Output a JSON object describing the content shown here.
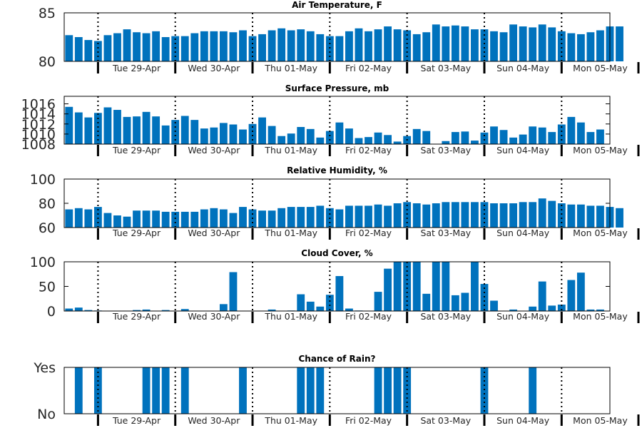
{
  "chart_data": [
    {
      "type": "bar",
      "title": "Air Temperature, F",
      "ylim": [
        80,
        85
      ],
      "yticks": [
        80,
        85
      ],
      "ytick_labels": [
        "80",
        "85"
      ],
      "x_tick_labels": [
        "Tue 29-Apr",
        "Wed 30-Apr",
        "Thu 01-May",
        "Fri 02-May",
        "Sat 03-May",
        "Sun 04-May",
        "Mon 05-May"
      ],
      "day_boundaries": true,
      "bar_color": "#0072BD",
      "values": [
        82.7,
        82.5,
        82.2,
        82.1,
        82.7,
        82.9,
        83.3,
        83.0,
        82.9,
        83.1,
        82.5,
        82.6,
        82.6,
        82.9,
        83.1,
        83.1,
        83.1,
        83.0,
        83.2,
        82.6,
        82.8,
        83.2,
        83.4,
        83.2,
        83.3,
        83.1,
        82.8,
        82.6,
        82.6,
        83.1,
        83.4,
        83.1,
        83.3,
        83.6,
        83.3,
        83.2,
        82.8,
        83.0,
        83.8,
        83.6,
        83.7,
        83.6,
        83.3,
        83.3,
        83.1,
        83.0,
        83.8,
        83.6,
        83.5,
        83.8,
        83.5,
        83.1,
        82.9,
        82.8,
        83.0,
        83.2,
        83.6,
        83.6
      ]
    },
    {
      "type": "bar",
      "title": "Surface Pressure, mb",
      "ylim": [
        1008,
        1017.5
      ],
      "yticks": [
        1008,
        1010,
        1012,
        1014,
        1016
      ],
      "ytick_labels": [
        "1008",
        "1010",
        "1012",
        "1014",
        "1016"
      ],
      "x_tick_labels": [
        "Tue 29-Apr",
        "Wed 30-Apr",
        "Thu 01-May",
        "Fri 02-May",
        "Sat 03-May",
        "Sun 04-May",
        "Mon 05-May"
      ],
      "day_boundaries": true,
      "bar_color": "#0072BD",
      "values": [
        1015.4,
        1014.3,
        1013.3,
        1014.2,
        1015.3,
        1014.8,
        1013.4,
        1013.5,
        1014.4,
        1013.5,
        1011.7,
        1012.8,
        1013.6,
        1012.8,
        1011.1,
        1011.3,
        1012.2,
        1011.9,
        1010.9,
        1012.0,
        1013.3,
        1011.6,
        1009.6,
        1010.1,
        1011.4,
        1011.0,
        1009.3,
        1010.6,
        1012.3,
        1011.1,
        1009.2,
        1009.4,
        1010.3,
        1009.8,
        1008.5,
        1009.6,
        1011.0,
        1010.6,
        1007.6,
        1008.6,
        1010.4,
        1010.5,
        1008.7,
        1010.3,
        1011.5,
        1010.8,
        1009.3,
        1009.9,
        1011.5,
        1011.3,
        1010.4,
        1011.9,
        1013.4,
        1012.3,
        1010.4,
        1010.9
      ]
    },
    {
      "type": "bar",
      "title": "Relative Humidity, %",
      "ylim": [
        60,
        100
      ],
      "yticks": [
        60,
        80,
        100
      ],
      "ytick_labels": [
        "60",
        "80",
        "100"
      ],
      "x_tick_labels": [
        "Tue 29-Apr",
        "Wed 30-Apr",
        "Thu 01-May",
        "Fri 02-May",
        "Sat 03-May",
        "Sun 04-May",
        "Mon 05-May"
      ],
      "day_boundaries": true,
      "bar_color": "#0072BD",
      "values": [
        75,
        76,
        75,
        77,
        72,
        70,
        69,
        74,
        74,
        74,
        73,
        73,
        73,
        73,
        75,
        76,
        75,
        72,
        77,
        75,
        74,
        74,
        76,
        77,
        77,
        77,
        78,
        76,
        75,
        78,
        78,
        78,
        79,
        78,
        80,
        81,
        80,
        79,
        80,
        81,
        81,
        81,
        81,
        81,
        80,
        80,
        80,
        81,
        81,
        84,
        82,
        80,
        79,
        79,
        78,
        78,
        77,
        76
      ]
    },
    {
      "type": "bar",
      "title": "Cloud Cover, %",
      "ylim": [
        0,
        100
      ],
      "yticks": [
        0,
        50,
        100
      ],
      "ytick_labels": [
        "0",
        "50",
        "100"
      ],
      "x_tick_labels": [
        "Tue 29-Apr",
        "Wed 30-Apr",
        "Thu 01-May",
        "Fri 02-May",
        "Sat 03-May",
        "Sun 04-May",
        "Mon 05-May"
      ],
      "day_boundaries": true,
      "bar_color": "#0072BD",
      "values": [
        5,
        7,
        2,
        1,
        0,
        0,
        0,
        2,
        3,
        0,
        2,
        0,
        4,
        0,
        0,
        0,
        14,
        79,
        0,
        0,
        0,
        3,
        0,
        1,
        34,
        19,
        9,
        33,
        71,
        5,
        1,
        0,
        39,
        86,
        100,
        100,
        100,
        35,
        100,
        100,
        32,
        37,
        100,
        55,
        21,
        0,
        3,
        0,
        9,
        60,
        11,
        13,
        63,
        78,
        3,
        3
      ]
    },
    {
      "type": "bar",
      "title": "Chance of Rain?",
      "ylim": [
        0,
        1
      ],
      "yticks": [
        0,
        1
      ],
      "ytick_labels": [
        "No",
        "Yes"
      ],
      "x_tick_labels": [
        "Tue 29-Apr",
        "Wed 30-Apr",
        "Thu 01-May",
        "Fri 02-May",
        "Sat 03-May",
        "Sun 04-May",
        "Mon 05-May"
      ],
      "day_boundaries": true,
      "bar_color": "#0072BD",
      "values": [
        0,
        1,
        0,
        1,
        0,
        0,
        0,
        0,
        1,
        1,
        1,
        0,
        1,
        0,
        0,
        0,
        0,
        0,
        1,
        0,
        0,
        0,
        0,
        0,
        1,
        1,
        1,
        0,
        0,
        0,
        0,
        0,
        1,
        1,
        1,
        1,
        0,
        0,
        0,
        0,
        0,
        0,
        0,
        1,
        0,
        0,
        0,
        0,
        1,
        0,
        0,
        0,
        0,
        0,
        0,
        0,
        0,
        0
      ]
    }
  ]
}
